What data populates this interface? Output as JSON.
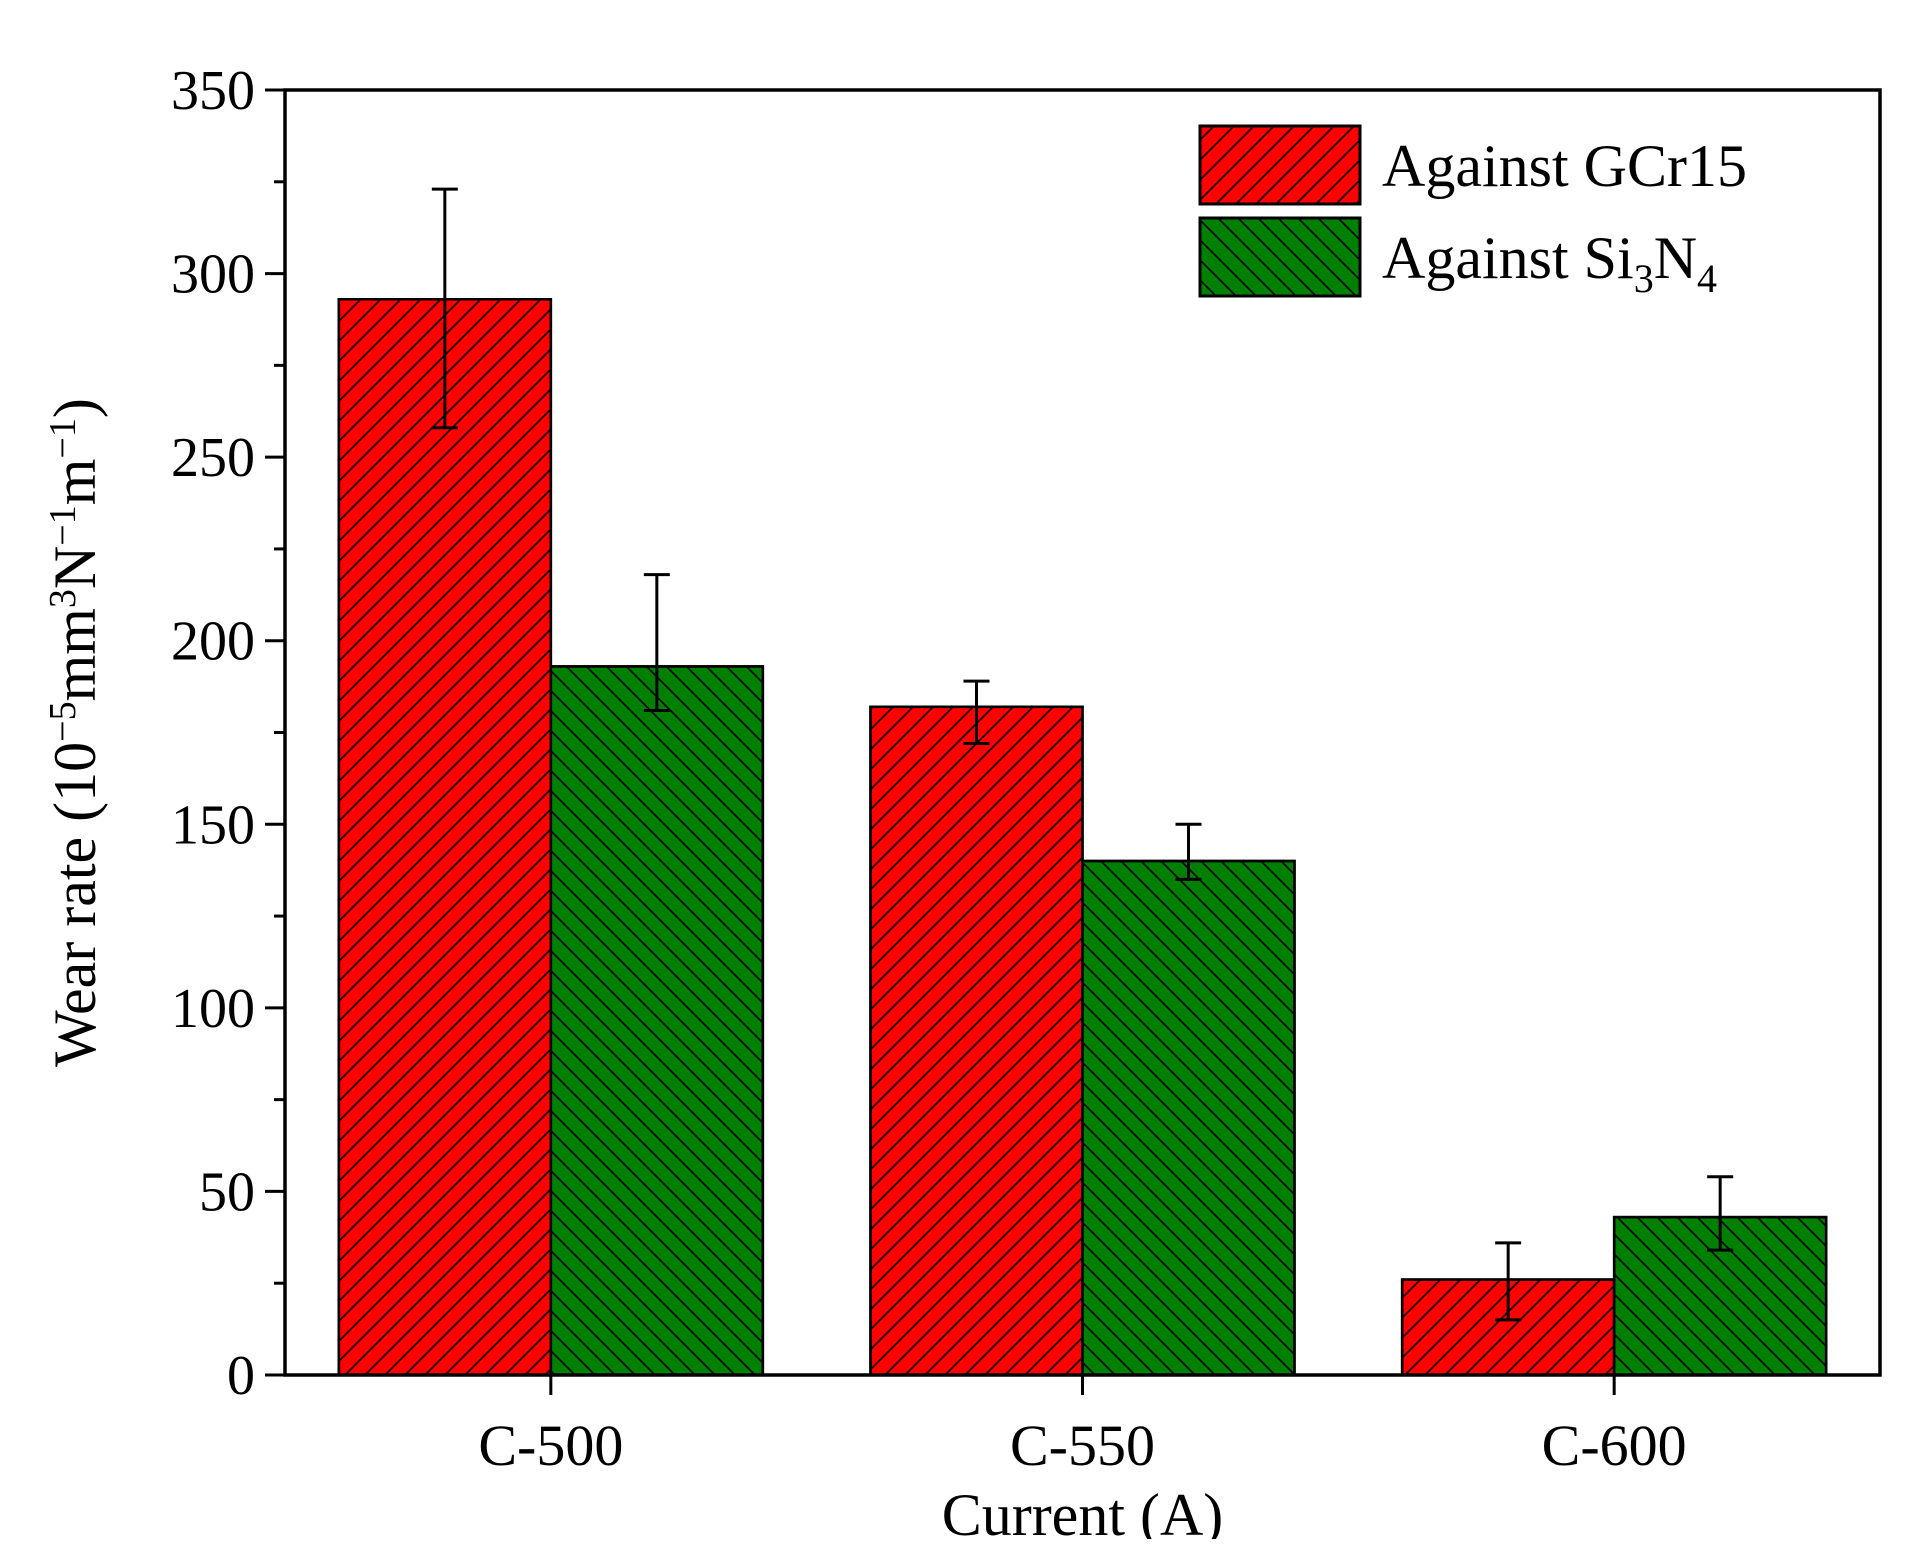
{
  "chart_data": {
    "type": "bar",
    "title": "",
    "xlabel": "Current (A)",
    "ylabel": {
      "prefix": "Wear rate (10",
      "exp1": "−5",
      "mid1": "mm",
      "exp2": "3",
      "mid2": "N",
      "exp3": "−1",
      "mid3": "m",
      "exp4": "−1",
      "suffix": ")"
    },
    "categories": [
      "C-500",
      "C-550",
      "C-600"
    ],
    "ylim": [
      0,
      350
    ],
    "yticks": [
      0,
      50,
      100,
      150,
      200,
      250,
      300,
      350
    ],
    "ytick_labels": [
      "0",
      "50",
      "100",
      "150",
      "200",
      "250",
      "300",
      "350"
    ],
    "grid": false,
    "legend_position": "top-right",
    "series": [
      {
        "name": "Against GCr15",
        "legend": {
          "text": "Against GCr15"
        },
        "color": "#ff0000",
        "hatch": "forward-diagonal",
        "values": [
          293,
          182,
          26
        ],
        "error_low": [
          258,
          172,
          15
        ],
        "error_high": [
          323,
          189,
          36
        ]
      },
      {
        "name": "Against Si3N4",
        "legend": {
          "text": "Against Si",
          "sub1": "3",
          "mid": "N",
          "sub2": "4"
        },
        "color": "#008000",
        "hatch": "back-diagonal",
        "values": [
          193,
          140,
          43
        ],
        "error_low": [
          181,
          135,
          34
        ],
        "error_high": [
          218,
          150,
          54
        ]
      }
    ]
  }
}
